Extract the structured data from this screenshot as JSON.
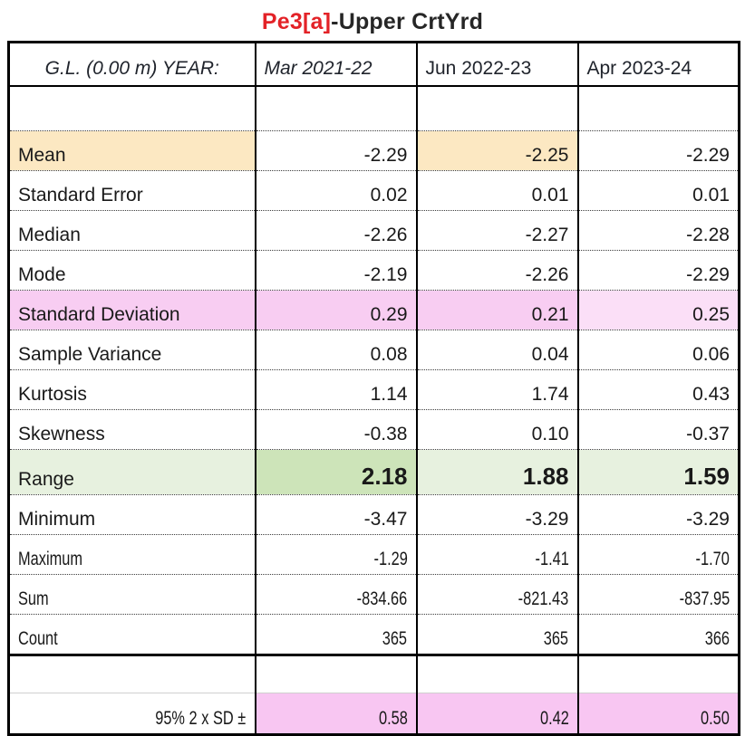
{
  "title": {
    "part_red": "Pe3[a]",
    "part_dark": "-Upper CrtYrd"
  },
  "header": {
    "row_label": "G.L. (0.00 m) YEAR:",
    "columns": [
      "Mar 2021-22",
      "Jun 2022-23",
      "Apr 2023-24"
    ]
  },
  "rows": [
    {
      "label": "Mean",
      "values": [
        "-2.29",
        "-2.25",
        "-2.29"
      ]
    },
    {
      "label": "Standard Error",
      "values": [
        "0.02",
        "0.01",
        "0.01"
      ]
    },
    {
      "label": "Median",
      "values": [
        "-2.26",
        "-2.27",
        "-2.28"
      ]
    },
    {
      "label": "Mode",
      "values": [
        "-2.19",
        "-2.26",
        "-2.29"
      ]
    },
    {
      "label": "Standard Deviation",
      "values": [
        "0.29",
        "0.21",
        "0.25"
      ]
    },
    {
      "label": "Sample Variance",
      "values": [
        "0.08",
        "0.04",
        "0.06"
      ]
    },
    {
      "label": "Kurtosis",
      "values": [
        "1.14",
        "1.74",
        "0.43"
      ]
    },
    {
      "label": "Skewness",
      "values": [
        "-0.38",
        "0.10",
        "-0.37"
      ]
    },
    {
      "label": "Range",
      "values": [
        "2.18",
        "1.88",
        "1.59"
      ]
    },
    {
      "label": "Minimum",
      "values": [
        "-3.47",
        "-3.29",
        "-3.29"
      ]
    },
    {
      "label": "Maximum",
      "values": [
        "-1.29",
        "-1.41",
        "-1.70"
      ]
    },
    {
      "label": "Sum",
      "values": [
        "-834.66",
        "-821.43",
        "-837.95"
      ]
    },
    {
      "label": "Count",
      "values": [
        "365",
        "365",
        "366"
      ]
    }
  ],
  "footer": {
    "label": "95% 2 x SD  ±",
    "values": [
      "0.58",
      "0.42",
      "0.50"
    ]
  },
  "colors": {
    "title_red": "#e32227",
    "mean_highlight_cream": "#fce8c2",
    "stdev_highlight_pink": "#f8cdf2",
    "stdev_highlight_pink_light": "#fbdff7",
    "range_green_dark": "#cde4b9",
    "range_green_light": "#e7f1df",
    "footer_pink": "#f8c6f2"
  }
}
